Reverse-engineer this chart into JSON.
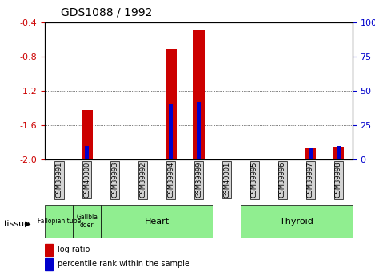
{
  "title": "GDS1088 / 1992",
  "samples": [
    "GSM39991",
    "GSM40000",
    "GSM39993",
    "GSM39992",
    "GSM39994",
    "GSM39999",
    "GSM40001",
    "GSM39995",
    "GSM39996",
    "GSM39997",
    "GSM39998"
  ],
  "log_ratio": [
    0,
    -1.42,
    0,
    0,
    -0.72,
    -0.5,
    0,
    0,
    0,
    -1.87,
    -1.85
  ],
  "percentile_rank": [
    null,
    10,
    null,
    null,
    40,
    42,
    null,
    null,
    null,
    8,
    10
  ],
  "ylim": [
    -2.0,
    -0.4
  ],
  "yticks_left": [
    -2.0,
    -1.6,
    -1.2,
    -0.8,
    -0.4
  ],
  "yticks_right": [
    0,
    25,
    50,
    75,
    100
  ],
  "bar_color": "#cc0000",
  "percentile_color": "#0000cc",
  "tick_label_color_left": "#cc0000",
  "tick_label_color_right": "#0000cc",
  "legend_bar_label": "log ratio",
  "legend_pct_label": "percentile rank within the sample",
  "tissue_label": "tissue",
  "tissue_configs": [
    {
      "label": "Fallopian tube",
      "start": 0,
      "end": 1,
      "color": "#90EE90",
      "fontsize": 5.5
    },
    {
      "label": "Gallbla\ndder",
      "start": 1,
      "end": 2,
      "color": "#90EE90",
      "fontsize": 5.5
    },
    {
      "label": "Heart",
      "start": 2,
      "end": 6,
      "color": "#90EE90",
      "fontsize": 8
    },
    {
      "label": "Thyroid",
      "start": 7,
      "end": 11,
      "color": "#90EE90",
      "fontsize": 8
    }
  ]
}
